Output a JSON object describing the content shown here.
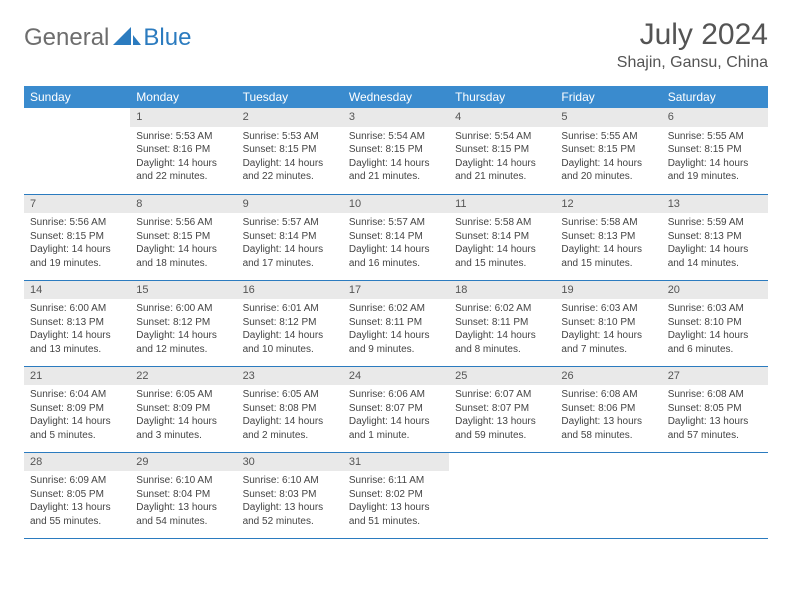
{
  "logo": {
    "text1": "General",
    "text2": "Blue",
    "color1": "#6d6d6d",
    "color2": "#2b7bbf"
  },
  "title": "July 2024",
  "location": "Shajin, Gansu, China",
  "colors": {
    "header_bg": "#3a8bce",
    "header_text": "#ffffff",
    "daynum_bg": "#e9e9e9",
    "daynum_text": "#555555",
    "border": "#2b7bbf",
    "body_text": "#444444"
  },
  "day_headers": [
    "Sunday",
    "Monday",
    "Tuesday",
    "Wednesday",
    "Thursday",
    "Friday",
    "Saturday"
  ],
  "weeks": [
    [
      {
        "n": "",
        "sr": "",
        "ss": "",
        "dl": ""
      },
      {
        "n": "1",
        "sr": "Sunrise: 5:53 AM",
        "ss": "Sunset: 8:16 PM",
        "dl": "Daylight: 14 hours and 22 minutes."
      },
      {
        "n": "2",
        "sr": "Sunrise: 5:53 AM",
        "ss": "Sunset: 8:15 PM",
        "dl": "Daylight: 14 hours and 22 minutes."
      },
      {
        "n": "3",
        "sr": "Sunrise: 5:54 AM",
        "ss": "Sunset: 8:15 PM",
        "dl": "Daylight: 14 hours and 21 minutes."
      },
      {
        "n": "4",
        "sr": "Sunrise: 5:54 AM",
        "ss": "Sunset: 8:15 PM",
        "dl": "Daylight: 14 hours and 21 minutes."
      },
      {
        "n": "5",
        "sr": "Sunrise: 5:55 AM",
        "ss": "Sunset: 8:15 PM",
        "dl": "Daylight: 14 hours and 20 minutes."
      },
      {
        "n": "6",
        "sr": "Sunrise: 5:55 AM",
        "ss": "Sunset: 8:15 PM",
        "dl": "Daylight: 14 hours and 19 minutes."
      }
    ],
    [
      {
        "n": "7",
        "sr": "Sunrise: 5:56 AM",
        "ss": "Sunset: 8:15 PM",
        "dl": "Daylight: 14 hours and 19 minutes."
      },
      {
        "n": "8",
        "sr": "Sunrise: 5:56 AM",
        "ss": "Sunset: 8:15 PM",
        "dl": "Daylight: 14 hours and 18 minutes."
      },
      {
        "n": "9",
        "sr": "Sunrise: 5:57 AM",
        "ss": "Sunset: 8:14 PM",
        "dl": "Daylight: 14 hours and 17 minutes."
      },
      {
        "n": "10",
        "sr": "Sunrise: 5:57 AM",
        "ss": "Sunset: 8:14 PM",
        "dl": "Daylight: 14 hours and 16 minutes."
      },
      {
        "n": "11",
        "sr": "Sunrise: 5:58 AM",
        "ss": "Sunset: 8:14 PM",
        "dl": "Daylight: 14 hours and 15 minutes."
      },
      {
        "n": "12",
        "sr": "Sunrise: 5:58 AM",
        "ss": "Sunset: 8:13 PM",
        "dl": "Daylight: 14 hours and 15 minutes."
      },
      {
        "n": "13",
        "sr": "Sunrise: 5:59 AM",
        "ss": "Sunset: 8:13 PM",
        "dl": "Daylight: 14 hours and 14 minutes."
      }
    ],
    [
      {
        "n": "14",
        "sr": "Sunrise: 6:00 AM",
        "ss": "Sunset: 8:13 PM",
        "dl": "Daylight: 14 hours and 13 minutes."
      },
      {
        "n": "15",
        "sr": "Sunrise: 6:00 AM",
        "ss": "Sunset: 8:12 PM",
        "dl": "Daylight: 14 hours and 12 minutes."
      },
      {
        "n": "16",
        "sr": "Sunrise: 6:01 AM",
        "ss": "Sunset: 8:12 PM",
        "dl": "Daylight: 14 hours and 10 minutes."
      },
      {
        "n": "17",
        "sr": "Sunrise: 6:02 AM",
        "ss": "Sunset: 8:11 PM",
        "dl": "Daylight: 14 hours and 9 minutes."
      },
      {
        "n": "18",
        "sr": "Sunrise: 6:02 AM",
        "ss": "Sunset: 8:11 PM",
        "dl": "Daylight: 14 hours and 8 minutes."
      },
      {
        "n": "19",
        "sr": "Sunrise: 6:03 AM",
        "ss": "Sunset: 8:10 PM",
        "dl": "Daylight: 14 hours and 7 minutes."
      },
      {
        "n": "20",
        "sr": "Sunrise: 6:03 AM",
        "ss": "Sunset: 8:10 PM",
        "dl": "Daylight: 14 hours and 6 minutes."
      }
    ],
    [
      {
        "n": "21",
        "sr": "Sunrise: 6:04 AM",
        "ss": "Sunset: 8:09 PM",
        "dl": "Daylight: 14 hours and 5 minutes."
      },
      {
        "n": "22",
        "sr": "Sunrise: 6:05 AM",
        "ss": "Sunset: 8:09 PM",
        "dl": "Daylight: 14 hours and 3 minutes."
      },
      {
        "n": "23",
        "sr": "Sunrise: 6:05 AM",
        "ss": "Sunset: 8:08 PM",
        "dl": "Daylight: 14 hours and 2 minutes."
      },
      {
        "n": "24",
        "sr": "Sunrise: 6:06 AM",
        "ss": "Sunset: 8:07 PM",
        "dl": "Daylight: 14 hours and 1 minute."
      },
      {
        "n": "25",
        "sr": "Sunrise: 6:07 AM",
        "ss": "Sunset: 8:07 PM",
        "dl": "Daylight: 13 hours and 59 minutes."
      },
      {
        "n": "26",
        "sr": "Sunrise: 6:08 AM",
        "ss": "Sunset: 8:06 PM",
        "dl": "Daylight: 13 hours and 58 minutes."
      },
      {
        "n": "27",
        "sr": "Sunrise: 6:08 AM",
        "ss": "Sunset: 8:05 PM",
        "dl": "Daylight: 13 hours and 57 minutes."
      }
    ],
    [
      {
        "n": "28",
        "sr": "Sunrise: 6:09 AM",
        "ss": "Sunset: 8:05 PM",
        "dl": "Daylight: 13 hours and 55 minutes."
      },
      {
        "n": "29",
        "sr": "Sunrise: 6:10 AM",
        "ss": "Sunset: 8:04 PM",
        "dl": "Daylight: 13 hours and 54 minutes."
      },
      {
        "n": "30",
        "sr": "Sunrise: 6:10 AM",
        "ss": "Sunset: 8:03 PM",
        "dl": "Daylight: 13 hours and 52 minutes."
      },
      {
        "n": "31",
        "sr": "Sunrise: 6:11 AM",
        "ss": "Sunset: 8:02 PM",
        "dl": "Daylight: 13 hours and 51 minutes."
      },
      {
        "n": "",
        "sr": "",
        "ss": "",
        "dl": ""
      },
      {
        "n": "",
        "sr": "",
        "ss": "",
        "dl": ""
      },
      {
        "n": "",
        "sr": "",
        "ss": "",
        "dl": ""
      }
    ]
  ]
}
